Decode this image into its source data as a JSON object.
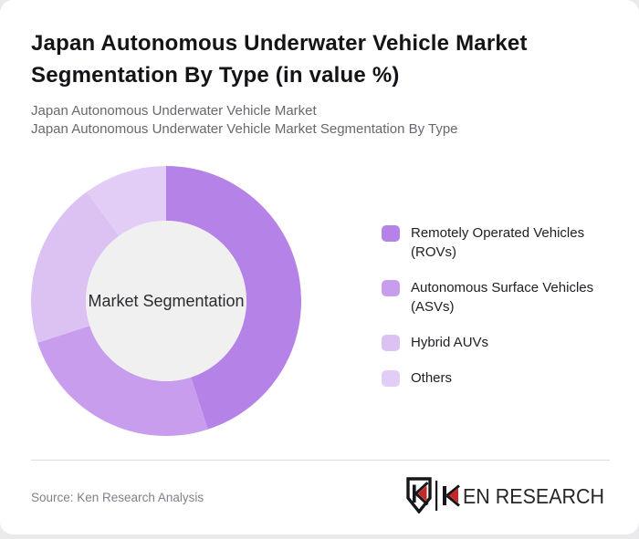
{
  "page": {
    "background_color": "#eaeaec",
    "card_color": "#ffffff"
  },
  "header": {
    "title": "Japan Autonomous Underwater Vehicle Market Segmentation By Type (in value %)",
    "subtitle_lines": [
      "Japan Autonomous Underwater Vehicle Market",
      "Japan Autonomous Underwater Vehicle Market Segmentation By Type"
    ]
  },
  "chart_data": {
    "type": "pie",
    "variant": "donut",
    "title": "Japan Autonomous Underwater Vehicle Market Segmentation By Type (in value %)",
    "center_label": "Market Segmentation",
    "categories": [
      "Remotely Operated Vehicles (ROVs)",
      "Autonomous Surface Vehicles (ASVs)",
      "Hybrid AUVs",
      "Others"
    ],
    "values": [
      45,
      25,
      20,
      10
    ],
    "unit": "percent (of market value)",
    "colors": [
      "#b583e8",
      "#c89dee",
      "#dcc1f3",
      "#e2cdf7"
    ],
    "start_angle_deg": 0,
    "direction": "clockwise",
    "inner_radius_ratio": 0.595,
    "hole_color": "#f0f0f0",
    "center_label_color": "#2b2b30",
    "legend_position": "right",
    "data_labels_shown": false
  },
  "footer": {
    "source": "Source: Ken Research Analysis",
    "logo": {
      "brand": "KEN RESEARCH",
      "wordmark_suffix": "EN RESEARCH",
      "accent_color": "#c62828",
      "mark_color": "#17171b"
    }
  }
}
